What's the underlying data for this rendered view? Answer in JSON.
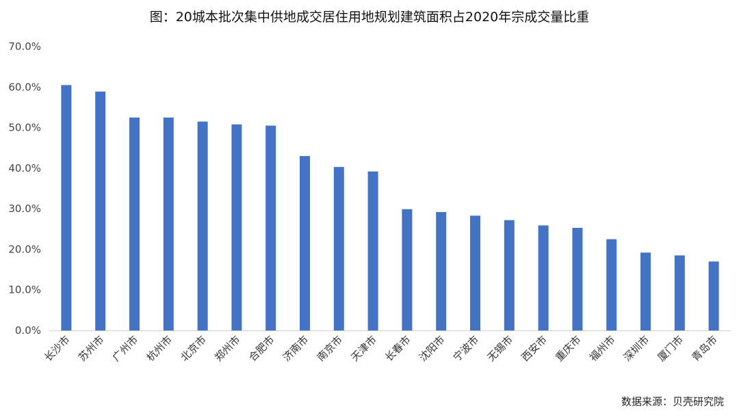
{
  "chart_data": {
    "type": "bar",
    "title": "图：20城本批次集中供地成交居住用地规划建筑面积占2020年宗成交量比重",
    "source": "数据来源：贝壳研究院",
    "categories": [
      "长沙市",
      "苏州市",
      "广州市",
      "杭州市",
      "北京市",
      "郑州市",
      "合肥市",
      "济南市",
      "南京市",
      "天津市",
      "长春市",
      "沈阳市",
      "宁波市",
      "无锡市",
      "西安市",
      "重庆市",
      "福州市",
      "深圳市",
      "厦门市",
      "青岛市"
    ],
    "values": [
      60.5,
      58.9,
      52.5,
      52.5,
      51.5,
      50.8,
      50.5,
      43.0,
      40.3,
      39.2,
      29.9,
      29.2,
      28.3,
      27.2,
      25.9,
      25.3,
      22.5,
      19.2,
      18.5,
      17.0
    ],
    "ylim": [
      0,
      70
    ],
    "yticks": [
      "0.0%",
      "10.0%",
      "20.0%",
      "30.0%",
      "40.0%",
      "50.0%",
      "60.0%",
      "70.0%"
    ],
    "bar_color": "#4472C4",
    "grid": false
  }
}
